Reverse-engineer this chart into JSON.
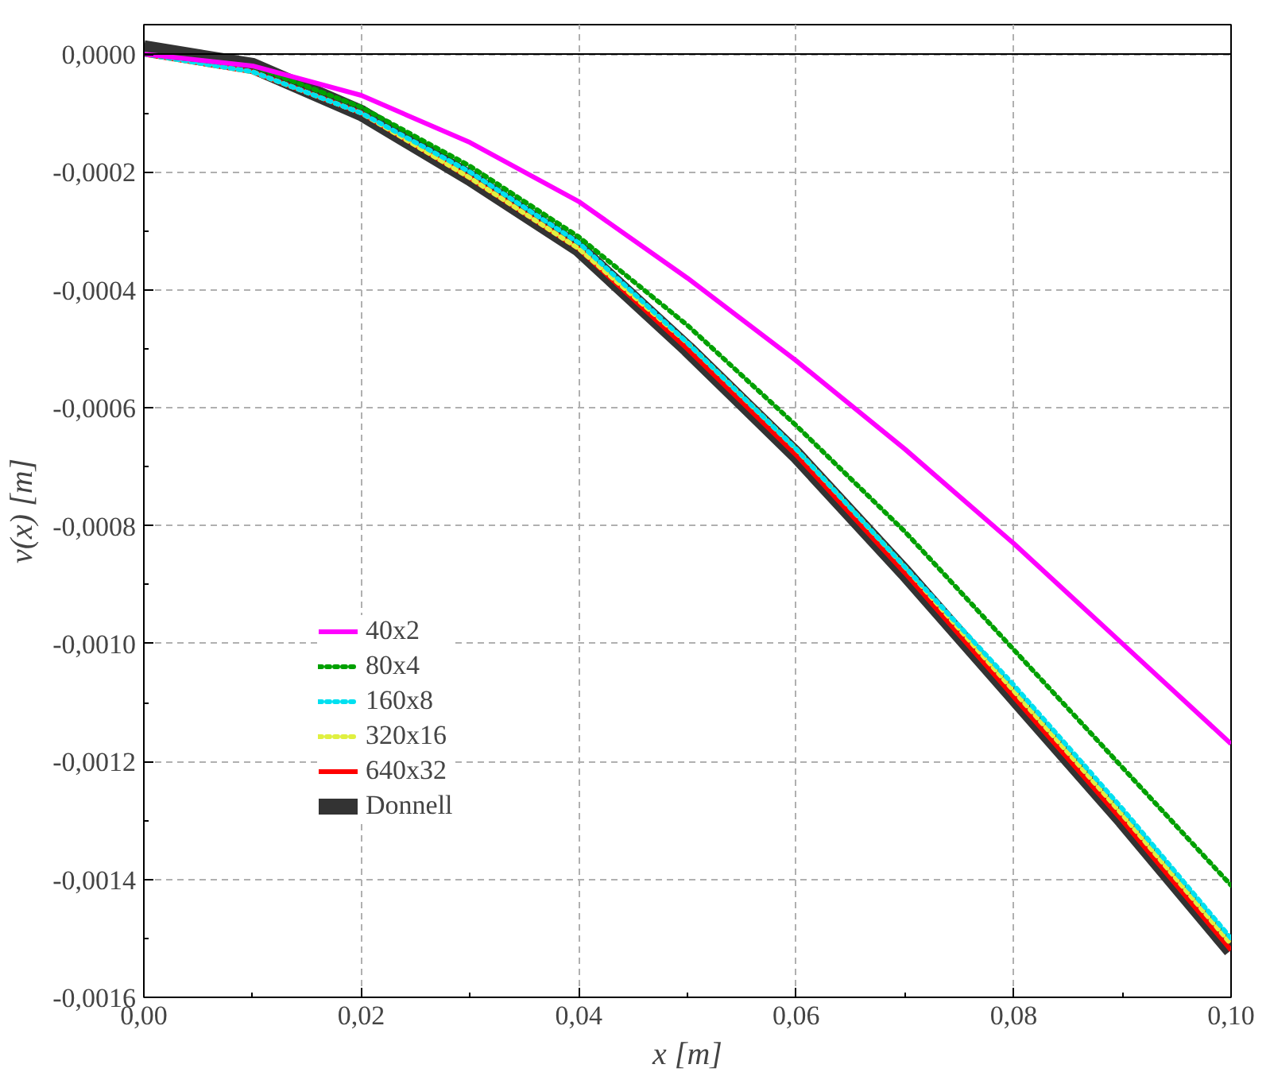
{
  "chart_data": {
    "type": "line",
    "xlabel": "x [m]",
    "ylabel": "v(x) [m]",
    "x": [
      0,
      0.01,
      0.02,
      0.03,
      0.04,
      0.05,
      0.06,
      0.07,
      0.08,
      0.09,
      0.1
    ],
    "series": [
      {
        "name": "40x2",
        "color": "#ff00ff",
        "line_style": "solid",
        "values": [
          0,
          -2e-05,
          -7e-05,
          -0.00015,
          -0.00025,
          -0.00038,
          -0.00052,
          -0.00067,
          -0.00083,
          -0.001,
          -0.00117
        ]
      },
      {
        "name": "80x4",
        "color": "#00a000",
        "line_style": "dotted",
        "values": [
          0,
          -2e-05,
          -9e-05,
          -0.00019,
          -0.00031,
          -0.00046,
          -0.00063,
          -0.00081,
          -0.00101,
          -0.00121,
          -0.00141
        ]
      },
      {
        "name": "160x8",
        "color": "#00e0f0",
        "line_style": "dotted",
        "values": [
          0,
          -3e-05,
          -0.0001,
          -0.0002,
          -0.00032,
          -0.00049,
          -0.00067,
          -0.00087,
          -0.00107,
          -0.00128,
          -0.0015
        ]
      },
      {
        "name": "320x16",
        "color": "#e0f040",
        "line_style": "dotted",
        "values": [
          0,
          -3e-05,
          -0.0001,
          -0.00021,
          -0.00033,
          -0.00049,
          -0.00067,
          -0.00087,
          -0.00108,
          -0.00129,
          -0.00151
        ]
      },
      {
        "name": "640x32",
        "color": "#ff0000",
        "line_style": "solid",
        "values": [
          0,
          -3e-05,
          -0.0001,
          -0.00021,
          -0.00033,
          -0.0005,
          -0.00068,
          -0.00088,
          -0.00109,
          -0.0013,
          -0.00152
        ]
      },
      {
        "name": "Donnell",
        "color": "#333333",
        "line_style": "solid",
        "values": [
          1e-05,
          -2e-05,
          -0.0001,
          -0.00021,
          -0.00033,
          -0.0005,
          -0.00068,
          -0.00088,
          -0.00109,
          -0.0013,
          -0.00152
        ]
      }
    ],
    "xlim": [
      0,
      0.1
    ],
    "xticks": [
      {
        "value": 0,
        "label": "0,00"
      },
      {
        "value": 0.02,
        "label": "0,02"
      },
      {
        "value": 0.04,
        "label": "0,04"
      },
      {
        "value": 0.06,
        "label": "0,06"
      },
      {
        "value": 0.08,
        "label": "0,08"
      },
      {
        "value": 0.1,
        "label": "0,10"
      }
    ],
    "ylim": [
      -0.0016,
      5e-05
    ],
    "yticks": [
      {
        "value": 0,
        "label": "0,0000"
      },
      {
        "value": -0.0002,
        "label": "-0,0002"
      },
      {
        "value": -0.0004,
        "label": "-0,0004"
      },
      {
        "value": -0.0006,
        "label": "-0,0006"
      },
      {
        "value": -0.0008,
        "label": "-0,0008"
      },
      {
        "value": -0.001,
        "label": "-0,0010"
      },
      {
        "value": -0.0012,
        "label": "-0,0012"
      },
      {
        "value": -0.0014,
        "label": "-0,0014"
      },
      {
        "value": -0.0016,
        "label": "-0,0016"
      }
    ],
    "ref_lines": [
      {
        "axis": "y",
        "value": 0,
        "color": "#000000"
      }
    ],
    "grid": true,
    "legend": "bottom left"
  }
}
